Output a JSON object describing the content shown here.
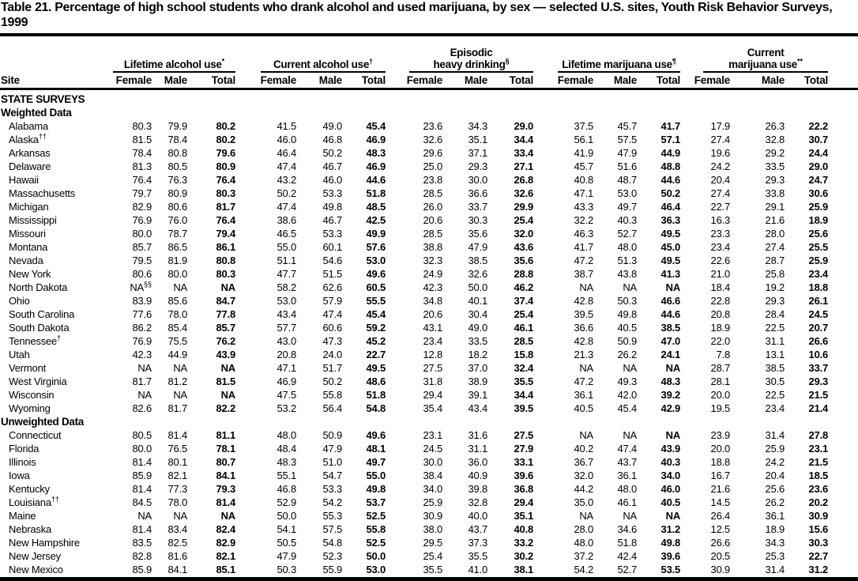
{
  "title": "Table 21. Percentage of high school students who drank alcohol and used marijuana, by sex — selected U.S. sites, Youth Risk Behavior Surveys, 1999",
  "header": {
    "site_label": "Site",
    "sub_headers": [
      "Female",
      "Male",
      "Total"
    ],
    "groups": [
      {
        "line1": "",
        "line2": "Lifetime alcohol use",
        "marker": "*"
      },
      {
        "line1": "",
        "line2": "Current alcohol use",
        "marker": "†"
      },
      {
        "line1": "Episodic",
        "line2": "heavy drinking",
        "marker": "§"
      },
      {
        "line1": "",
        "line2": "Lifetime marijuana use",
        "marker": "¶"
      },
      {
        "line1": "Current",
        "line2": "marijuana use",
        "marker": "**"
      }
    ]
  },
  "sections": {
    "state_surveys_label": "STATE SURVEYS",
    "weighted_label": "Weighted Data",
    "unweighted_label": "Unweighted Data"
  },
  "rows_weighted": [
    {
      "site": "Alabama",
      "sup": "",
      "values": [
        "80.3",
        "79.9",
        "80.2",
        "41.5",
        "49.0",
        "45.4",
        "23.6",
        "34.3",
        "29.0",
        "37.5",
        "45.7",
        "41.7",
        "17.9",
        "26.3",
        "22.2"
      ]
    },
    {
      "site": "Alaska",
      "sup": "††",
      "values": [
        "81.5",
        "78.4",
        "80.2",
        "46.0",
        "46.8",
        "46.9",
        "32.6",
        "35.1",
        "34.4",
        "56.1",
        "57.5",
        "57.1",
        "27.4",
        "32.8",
        "30.7"
      ]
    },
    {
      "site": "Arkansas",
      "sup": "",
      "values": [
        "78.4",
        "80.8",
        "79.6",
        "46.4",
        "50.2",
        "48.3",
        "29.6",
        "37.1",
        "33.4",
        "41.9",
        "47.9",
        "44.9",
        "19.6",
        "29.2",
        "24.4"
      ]
    },
    {
      "site": "Delaware",
      "sup": "",
      "values": [
        "81.3",
        "80.5",
        "80.9",
        "47.4",
        "46.7",
        "46.9",
        "25.0",
        "29.3",
        "27.1",
        "45.7",
        "51.6",
        "48.8",
        "24.2",
        "33.5",
        "29.0"
      ]
    },
    {
      "site": "Hawaii",
      "sup": "",
      "values": [
        "76.4",
        "76.3",
        "76.4",
        "43.2",
        "46.0",
        "44.6",
        "23.8",
        "30.0",
        "26.8",
        "40.8",
        "48.7",
        "44.6",
        "20.4",
        "29.3",
        "24.7"
      ]
    },
    {
      "site": "Massachusetts",
      "sup": "",
      "values": [
        "79.7",
        "80.9",
        "80.3",
        "50.2",
        "53.3",
        "51.8",
        "28.5",
        "36.6",
        "32.6",
        "47.1",
        "53.0",
        "50.2",
        "27.4",
        "33.8",
        "30.6"
      ]
    },
    {
      "site": "Michigan",
      "sup": "",
      "values": [
        "82.9",
        "80.6",
        "81.7",
        "47.4",
        "49.8",
        "48.5",
        "26.0",
        "33.7",
        "29.9",
        "43.3",
        "49.7",
        "46.4",
        "22.7",
        "29.1",
        "25.9"
      ]
    },
    {
      "site": "Mississippi",
      "sup": "",
      "values": [
        "76.9",
        "76.0",
        "76.4",
        "38.6",
        "46.7",
        "42.5",
        "20.6",
        "30.3",
        "25.4",
        "32.2",
        "40.3",
        "36.3",
        "16.3",
        "21.6",
        "18.9"
      ]
    },
    {
      "site": "Missouri",
      "sup": "",
      "values": [
        "80.0",
        "78.7",
        "79.4",
        "46.5",
        "53.3",
        "49.9",
        "28.5",
        "35.6",
        "32.0",
        "46.3",
        "52.7",
        "49.5",
        "23.3",
        "28.0",
        "25.6"
      ]
    },
    {
      "site": "Montana",
      "sup": "",
      "values": [
        "85.7",
        "86.5",
        "86.1",
        "55.0",
        "60.1",
        "57.6",
        "38.8",
        "47.9",
        "43.6",
        "41.7",
        "48.0",
        "45.0",
        "23.4",
        "27.4",
        "25.5"
      ]
    },
    {
      "site": "Nevada",
      "sup": "",
      "values": [
        "79.5",
        "81.9",
        "80.8",
        "51.1",
        "54.6",
        "53.0",
        "32.3",
        "38.5",
        "35.6",
        "47.2",
        "51.3",
        "49.5",
        "22.6",
        "28.7",
        "25.9"
      ]
    },
    {
      "site": "New York",
      "sup": "",
      "values": [
        "80.6",
        "80.0",
        "80.3",
        "47.7",
        "51.5",
        "49.6",
        "24.9",
        "32.6",
        "28.8",
        "38.7",
        "43.8",
        "41.3",
        "21.0",
        "25.8",
        "23.4"
      ]
    },
    {
      "site": "North Dakota",
      "sup": "",
      "values": [
        "NA§§",
        "NA",
        "NA",
        "58.2",
        "62.6",
        "60.5",
        "42.3",
        "50.0",
        "46.2",
        "NA",
        "NA",
        "NA",
        "18.4",
        "19.2",
        "18.8"
      ]
    },
    {
      "site": "Ohio",
      "sup": "",
      "values": [
        "83.9",
        "85.6",
        "84.7",
        "53.0",
        "57.9",
        "55.5",
        "34.8",
        "40.1",
        "37.4",
        "42.8",
        "50.3",
        "46.6",
        "22.8",
        "29.3",
        "26.1"
      ]
    },
    {
      "site": "South Carolina",
      "sup": "",
      "values": [
        "77.6",
        "78.0",
        "77.8",
        "43.4",
        "47.4",
        "45.4",
        "20.6",
        "30.4",
        "25.4",
        "39.5",
        "49.8",
        "44.6",
        "20.8",
        "28.4",
        "24.5"
      ]
    },
    {
      "site": "South Dakota",
      "sup": "",
      "values": [
        "86.2",
        "85.4",
        "85.7",
        "57.7",
        "60.6",
        "59.2",
        "43.1",
        "49.0",
        "46.1",
        "36.6",
        "40.5",
        "38.5",
        "18.9",
        "22.5",
        "20.7"
      ]
    },
    {
      "site": "Tennessee",
      "sup": "†",
      "values": [
        "76.9",
        "75.5",
        "76.2",
        "43.0",
        "47.3",
        "45.2",
        "23.4",
        "33.5",
        "28.5",
        "42.8",
        "50.9",
        "47.0",
        "22.0",
        "31.1",
        "26.6"
      ]
    },
    {
      "site": "Utah",
      "sup": "",
      "values": [
        "42.3",
        "44.9",
        "43.9",
        "20.8",
        "24.0",
        "22.7",
        "12.8",
        "18.2",
        "15.8",
        "21.3",
        "26.2",
        "24.1",
        "7.8",
        "13.1",
        "10.6"
      ]
    },
    {
      "site": "Vermont",
      "sup": "",
      "values": [
        "NA",
        "NA",
        "NA",
        "47.1",
        "51.7",
        "49.5",
        "27.5",
        "37.0",
        "32.4",
        "NA",
        "NA",
        "NA",
        "28.7",
        "38.5",
        "33.7"
      ]
    },
    {
      "site": "West Virginia",
      "sup": "",
      "values": [
        "81.7",
        "81.2",
        "81.5",
        "46.9",
        "50.2",
        "48.6",
        "31.8",
        "38.9",
        "35.5",
        "47.2",
        "49.3",
        "48.3",
        "28.1",
        "30.5",
        "29.3"
      ]
    },
    {
      "site": "Wisconsin",
      "sup": "",
      "values": [
        "NA",
        "NA",
        "NA",
        "47.5",
        "55.8",
        "51.8",
        "29.4",
        "39.1",
        "34.4",
        "36.1",
        "42.0",
        "39.2",
        "20.0",
        "22.5",
        "21.5"
      ]
    },
    {
      "site": "Wyoming",
      "sup": "",
      "values": [
        "82.6",
        "81.7",
        "82.2",
        "53.2",
        "56.4",
        "54.8",
        "35.4",
        "43.4",
        "39.5",
        "40.5",
        "45.4",
        "42.9",
        "19.5",
        "23.4",
        "21.4"
      ]
    }
  ],
  "rows_unweighted": [
    {
      "site": "Connecticut",
      "sup": "",
      "values": [
        "80.5",
        "81.4",
        "81.1",
        "48.0",
        "50.9",
        "49.6",
        "23.1",
        "31.6",
        "27.5",
        "NA",
        "NA",
        "NA",
        "23.9",
        "31.4",
        "27.8"
      ]
    },
    {
      "site": "Florida",
      "sup": "",
      "values": [
        "80.0",
        "76.5",
        "78.1",
        "48.4",
        "47.9",
        "48.1",
        "24.5",
        "31.1",
        "27.9",
        "40.2",
        "47.4",
        "43.9",
        "20.0",
        "25.9",
        "23.1"
      ]
    },
    {
      "site": "Illinois",
      "sup": "",
      "values": [
        "81.4",
        "80.1",
        "80.7",
        "48.3",
        "51.0",
        "49.7",
        "30.0",
        "36.0",
        "33.1",
        "36.7",
        "43.7",
        "40.3",
        "18.8",
        "24.2",
        "21.5"
      ]
    },
    {
      "site": "Iowa",
      "sup": "",
      "values": [
        "85.9",
        "82.1",
        "84.1",
        "55.1",
        "54.7",
        "55.0",
        "38.4",
        "40.9",
        "39.6",
        "32.0",
        "36.1",
        "34.0",
        "16.7",
        "20.4",
        "18.5"
      ]
    },
    {
      "site": "Kentucky",
      "sup": "",
      "values": [
        "81.4",
        "77.3",
        "79.3",
        "46.8",
        "53.3",
        "49.8",
        "34.0",
        "39.8",
        "36.8",
        "44.2",
        "48.0",
        "46.0",
        "21.6",
        "25.6",
        "23.6"
      ]
    },
    {
      "site": "Louisiana",
      "sup": "††",
      "values": [
        "84.5",
        "78.0",
        "81.4",
        "52.9",
        "54.2",
        "53.7",
        "25.9",
        "32.8",
        "29.4",
        "35.0",
        "46.1",
        "40.5",
        "14.5",
        "26.2",
        "20.2"
      ]
    },
    {
      "site": "Maine",
      "sup": "",
      "values": [
        "NA",
        "NA",
        "NA",
        "50.0",
        "55.3",
        "52.5",
        "30.9",
        "40.0",
        "35.1",
        "NA",
        "NA",
        "NA",
        "26.4",
        "36.1",
        "30.9"
      ]
    },
    {
      "site": "Nebraska",
      "sup": "",
      "values": [
        "81.4",
        "83.4",
        "82.4",
        "54.1",
        "57.5",
        "55.8",
        "38.0",
        "43.7",
        "40.8",
        "28.0",
        "34.6",
        "31.2",
        "12.5",
        "18.9",
        "15.6"
      ]
    },
    {
      "site": "New Hampshire",
      "sup": "",
      "values": [
        "83.5",
        "82.5",
        "82.9",
        "50.5",
        "54.8",
        "52.5",
        "29.5",
        "37.3",
        "33.2",
        "48.0",
        "51.8",
        "49.8",
        "26.6",
        "34.3",
        "30.3"
      ]
    },
    {
      "site": "New Jersey",
      "sup": "",
      "values": [
        "82.8",
        "81.6",
        "82.1",
        "47.9",
        "52.3",
        "50.0",
        "25.4",
        "35.5",
        "30.2",
        "37.2",
        "42.4",
        "39.6",
        "20.5",
        "25.3",
        "22.7"
      ]
    },
    {
      "site": "New Mexico",
      "sup": "",
      "values": [
        "85.9",
        "84.1",
        "85.1",
        "50.3",
        "55.9",
        "53.0",
        "35.5",
        "41.0",
        "38.1",
        "54.2",
        "52.7",
        "53.5",
        "30.9",
        "31.4",
        "31.2"
      ]
    }
  ]
}
